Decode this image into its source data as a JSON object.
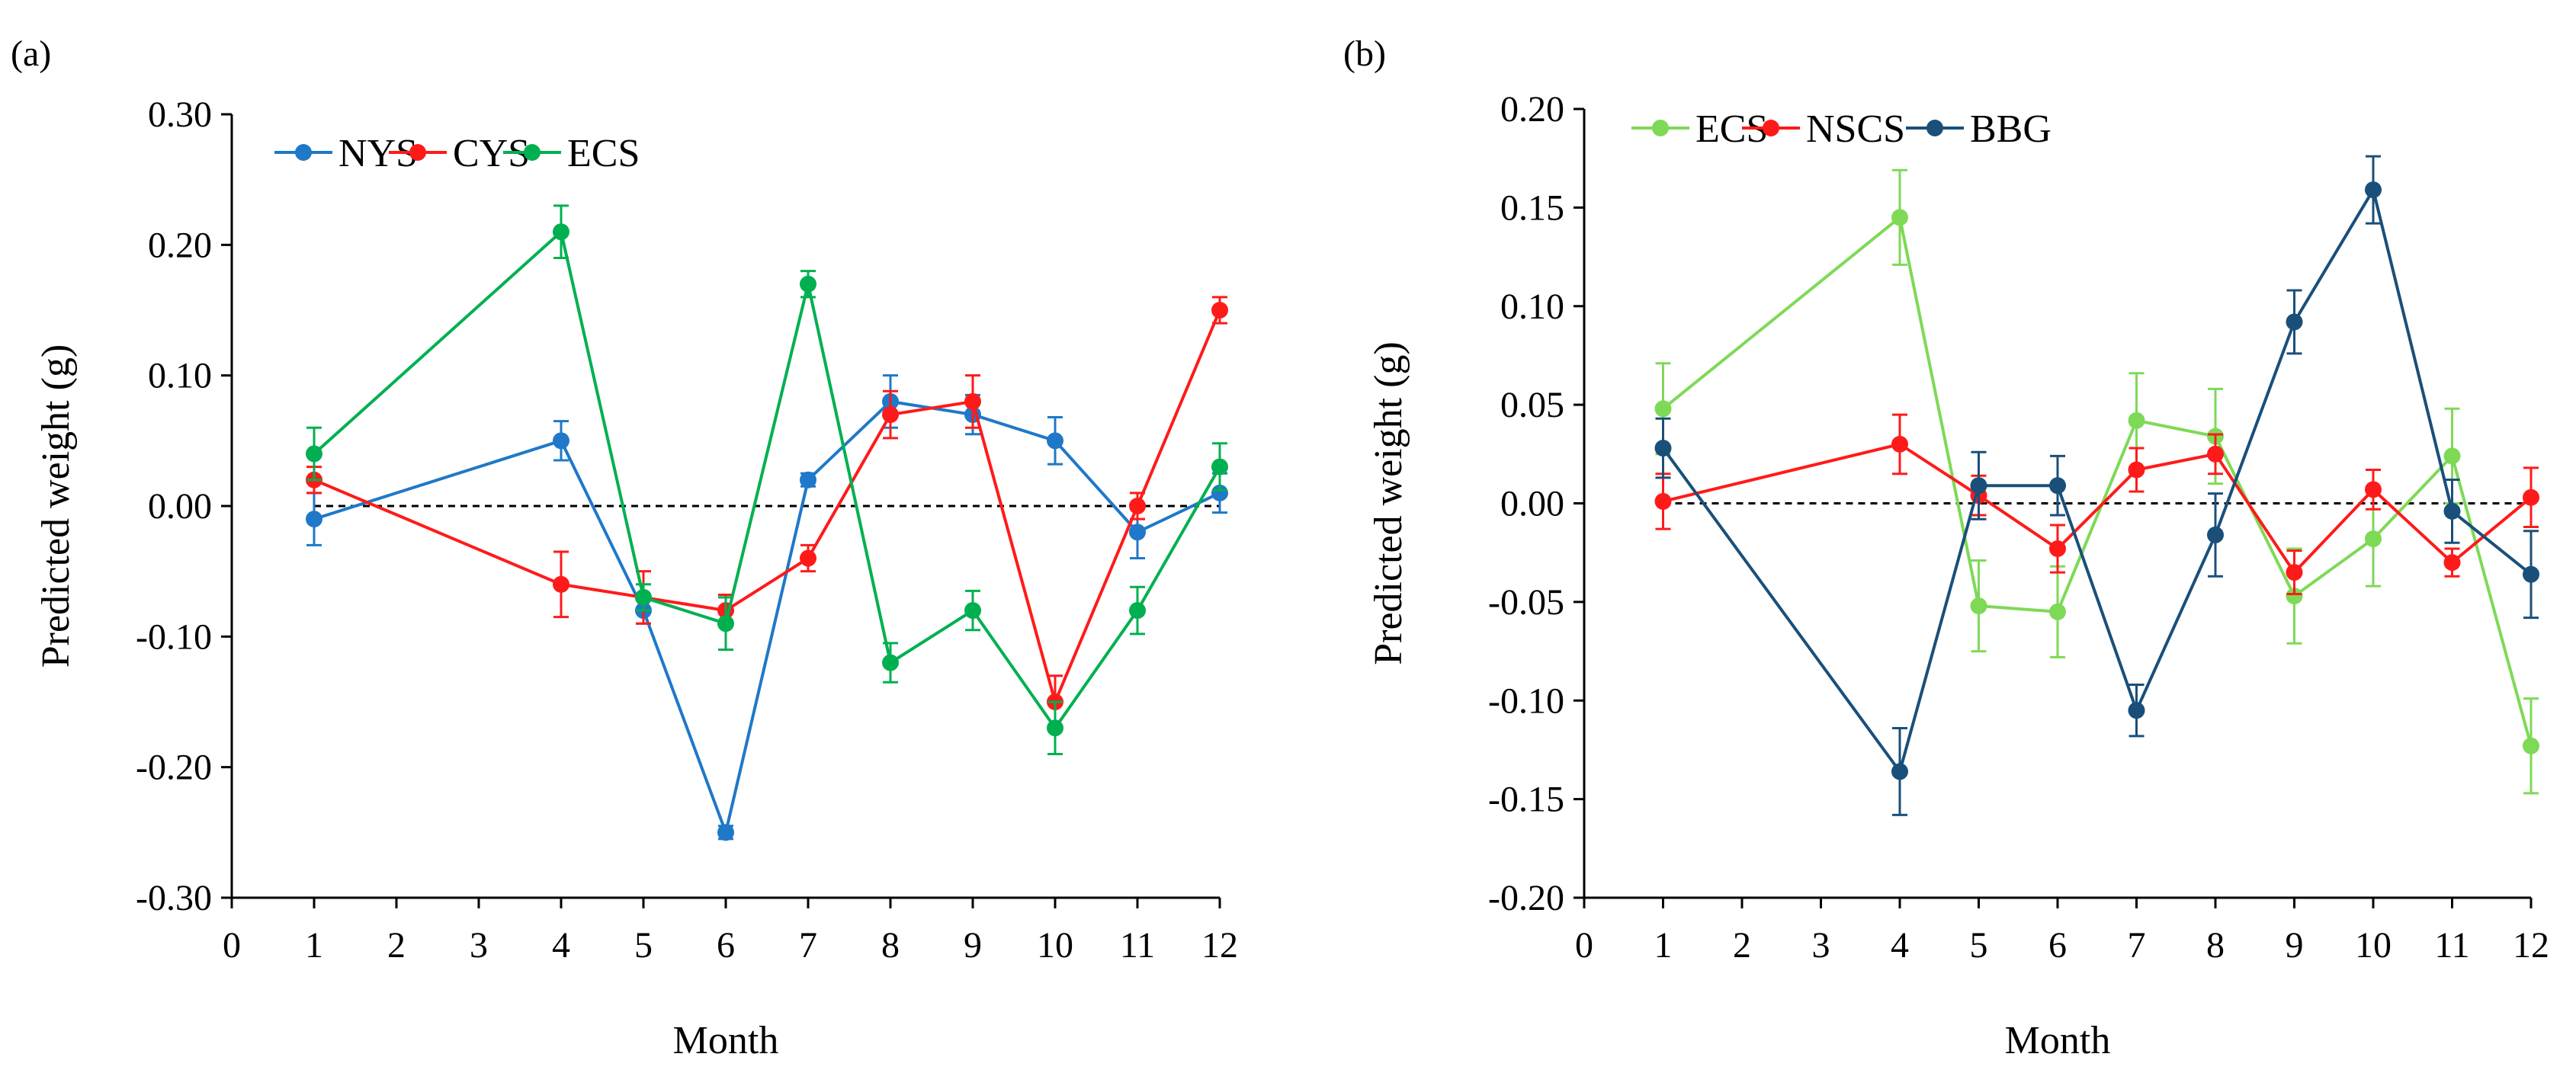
{
  "chart_data": [
    {
      "panel_label": "(a)",
      "type": "line",
      "xlabel": "Month",
      "ylabel": "Predicted weight (g)",
      "xlim": [
        0,
        12
      ],
      "ylim": [
        -0.3,
        0.3
      ],
      "x_ticks": [
        0,
        1,
        2,
        3,
        4,
        5,
        6,
        7,
        8,
        9,
        10,
        11,
        12
      ],
      "x_tick_labels": [
        "0",
        "1",
        "2",
        "3",
        "4",
        "5",
        "6",
        "7",
        "8",
        "9",
        "10",
        "11",
        "12"
      ],
      "y_ticks": [
        0.3,
        0.2,
        0.1,
        0.0,
        -0.1,
        -0.2,
        -0.3
      ],
      "y_tick_labels": [
        "0.30",
        "0.20",
        "0.10",
        "0.00",
        "-0.10",
        "-0.20",
        "-0.30"
      ],
      "reference_line": 0,
      "grid": false,
      "legend_position": "top-left",
      "series": [
        {
          "name": "NYS",
          "color": "#1f78c8",
          "x": [
            1,
            4,
            5,
            6,
            7,
            8,
            9,
            10,
            11,
            12
          ],
          "values": [
            -0.01,
            0.05,
            -0.08,
            -0.25,
            0.02,
            0.08,
            0.07,
            0.05,
            -0.02,
            0.01
          ],
          "errors": [
            0.02,
            0.015,
            0.01,
            0.005,
            0.005,
            0.02,
            0.015,
            0.018,
            0.02,
            0.015
          ]
        },
        {
          "name": "CYS",
          "color": "#ff1a1a",
          "x": [
            1,
            4,
            5,
            6,
            7,
            8,
            9,
            10,
            11,
            12
          ],
          "values": [
            0.02,
            -0.06,
            -0.07,
            -0.08,
            -0.04,
            0.07,
            0.08,
            -0.15,
            0.0,
            0.15
          ],
          "errors": [
            0.01,
            0.025,
            0.02,
            0.012,
            0.01,
            0.018,
            0.02,
            0.02,
            0.01,
            0.01
          ]
        },
        {
          "name": "ECS",
          "color": "#00b050",
          "x": [
            1,
            4,
            5,
            6,
            7,
            8,
            9,
            10,
            11,
            12
          ],
          "values": [
            0.04,
            0.21,
            -0.07,
            -0.09,
            0.17,
            -0.12,
            -0.08,
            -0.17,
            -0.08,
            0.03
          ],
          "errors": [
            0.02,
            0.02,
            0.01,
            0.02,
            0.01,
            0.015,
            0.015,
            0.02,
            0.018,
            0.018
          ]
        }
      ]
    },
    {
      "panel_label": "(b)",
      "type": "line",
      "xlabel": "Month",
      "ylabel": "Predicted weight (g)",
      "xlim": [
        0,
        12
      ],
      "ylim": [
        -0.2,
        0.2
      ],
      "x_ticks": [
        0,
        1,
        2,
        3,
        4,
        5,
        6,
        7,
        8,
        9,
        10,
        11,
        12
      ],
      "x_tick_labels": [
        "0",
        "1",
        "2",
        "3",
        "4",
        "5",
        "6",
        "7",
        "8",
        "9",
        "10",
        "11",
        "12"
      ],
      "y_ticks": [
        0.2,
        0.15,
        0.1,
        0.05,
        0.0,
        -0.05,
        -0.1,
        -0.15,
        -0.2
      ],
      "y_tick_labels": [
        "0.20",
        "0.15",
        "0.10",
        "0.05",
        "0.00",
        "-0.05",
        "-0.10",
        "-0.15",
        "-0.20"
      ],
      "reference_line": 0,
      "grid": false,
      "legend_position": "top-left",
      "series": [
        {
          "name": "ECS",
          "color": "#7ed957",
          "x": [
            1,
            4,
            5,
            6,
            7,
            8,
            9,
            10,
            11,
            12
          ],
          "values": [
            0.048,
            0.145,
            -0.052,
            -0.055,
            0.042,
            0.034,
            -0.047,
            -0.018,
            0.024,
            -0.123
          ],
          "errors": [
            0.023,
            0.024,
            0.023,
            0.023,
            0.024,
            0.024,
            0.024,
            0.024,
            0.024,
            0.024
          ]
        },
        {
          "name": "NSCS",
          "color": "#ff1a1a",
          "x": [
            1,
            4,
            5,
            6,
            7,
            8,
            9,
            10,
            11,
            12
          ],
          "values": [
            0.001,
            0.03,
            0.004,
            -0.023,
            0.017,
            0.025,
            -0.035,
            0.007,
            -0.03,
            0.003
          ],
          "errors": [
            0.014,
            0.015,
            0.01,
            0.012,
            0.011,
            0.01,
            0.011,
            0.01,
            0.007,
            0.015
          ]
        },
        {
          "name": "BBG",
          "color": "#1a4f7a",
          "x": [
            1,
            4,
            5,
            6,
            7,
            8,
            9,
            10,
            11,
            12
          ],
          "values": [
            0.028,
            -0.136,
            0.009,
            0.009,
            -0.105,
            -0.016,
            0.092,
            0.159,
            -0.004,
            -0.036
          ],
          "errors": [
            0.015,
            0.022,
            0.017,
            0.015,
            0.013,
            0.021,
            0.016,
            0.017,
            0.016,
            0.022
          ]
        }
      ]
    }
  ]
}
